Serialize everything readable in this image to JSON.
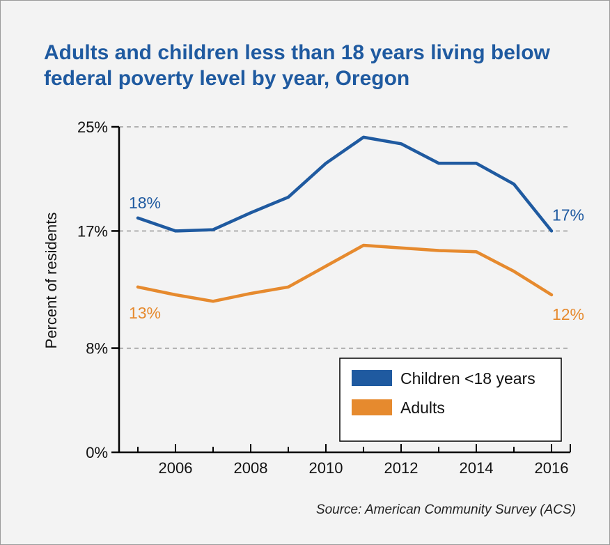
{
  "title": "Adults and children less than 18 years living below federal poverty level by year, Oregon",
  "source": "Source: American Community Survey (ACS)",
  "colors": {
    "children": "#1f5aa0",
    "adults": "#e68a2e",
    "grid": "#888888",
    "axis": "#000000"
  },
  "chart_data": {
    "type": "line",
    "ylabel": "Percent of residents",
    "xlabel": "",
    "xlim": [
      2004.5,
      2016.5
    ],
    "ylim": [
      0,
      25
    ],
    "x_ticks": [
      2006,
      2008,
      2010,
      2012,
      2014,
      2016
    ],
    "y_ticks": [
      0,
      8,
      17,
      25
    ],
    "y_tick_labels": [
      "0%",
      "8%",
      "17%",
      "25%"
    ],
    "gridlines_at": [
      8,
      17,
      25
    ],
    "legend_position": "bottom-right",
    "series": [
      {
        "name": "Children <18 years",
        "color": "#1f5aa0",
        "x": [
          2005,
          2006,
          2007,
          2008,
          2009,
          2010,
          2011,
          2012,
          2013,
          2014,
          2015,
          2016
        ],
        "y": [
          18.0,
          17.0,
          17.1,
          18.4,
          19.6,
          22.2,
          24.2,
          23.7,
          22.2,
          22.2,
          20.6,
          17.0
        ],
        "start_label": "18%",
        "end_label": "17%"
      },
      {
        "name": "Adults",
        "color": "#e68a2e",
        "x": [
          2005,
          2006,
          2007,
          2008,
          2009,
          2010,
          2011,
          2012,
          2013,
          2014,
          2015,
          2016
        ],
        "y": [
          12.7,
          12.1,
          11.6,
          12.2,
          12.7,
          14.3,
          15.9,
          15.7,
          15.5,
          15.4,
          13.9,
          12.1
        ],
        "start_label": "13%",
        "end_label": "12%"
      }
    ]
  }
}
